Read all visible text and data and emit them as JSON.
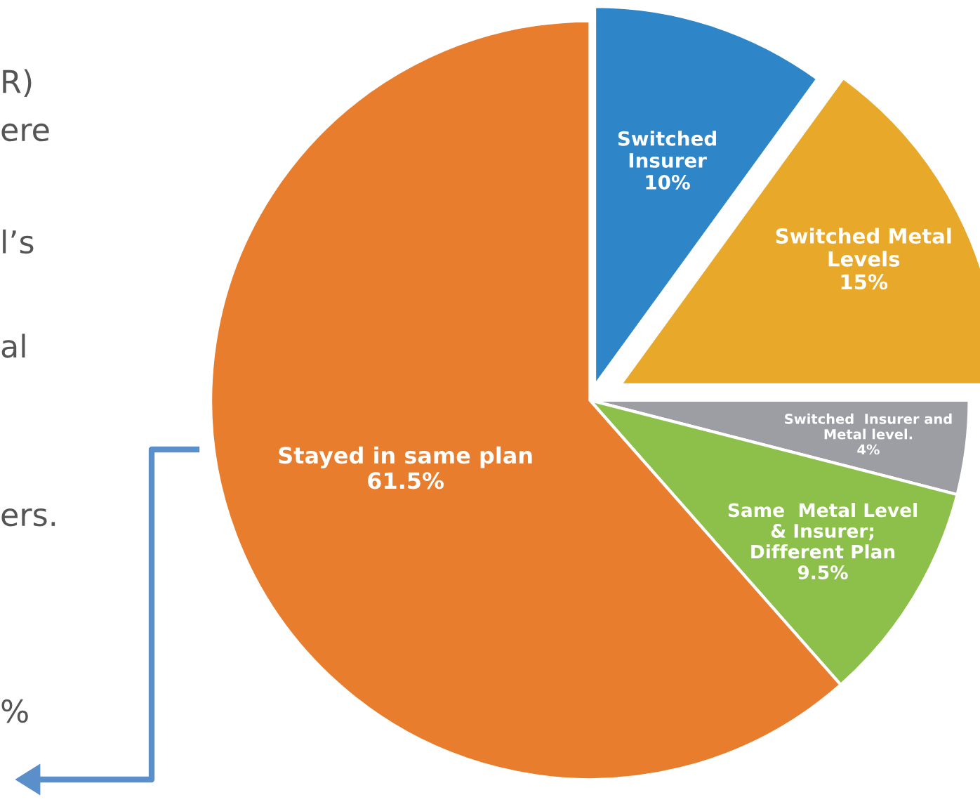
{
  "chart_data": {
    "type": "pie",
    "categories": [
      "Switched\nInsurer",
      "Switched Metal\nLevels",
      "Switched  Insurer and\nMetal level.",
      "Same  Metal Level\n& Insurer;\nDifferent Plan",
      "Stayed in same plan"
    ],
    "values": [
      10,
      15,
      4,
      9.5,
      61.5
    ],
    "value_labels": [
      "10%",
      "15%",
      "4%",
      "9.5%",
      "61.5%"
    ],
    "colors": [
      "#2e86c8",
      "#e8a92a",
      "#9c9ea3",
      "#8cc04a",
      "#e87d2e"
    ],
    "annotations": [
      "R)",
      "ere",
      "l’s",
      "al",
      "ers.",
      "%"
    ],
    "legend": false
  }
}
